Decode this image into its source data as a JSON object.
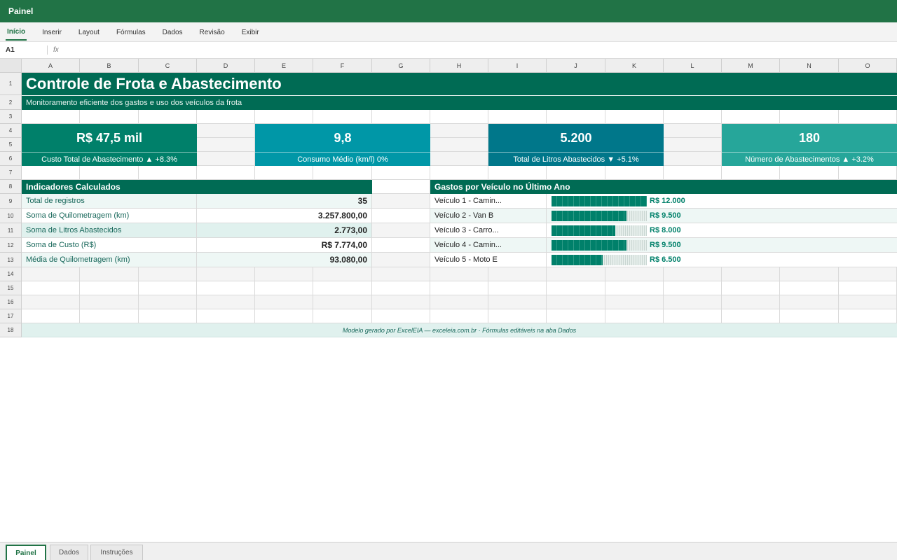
{
  "app": {
    "title": "Painel"
  },
  "ribbon": {
    "tabs": [
      "Início",
      "Inserir",
      "Layout",
      "Fórmulas",
      "Dados",
      "Revisão",
      "Exibir"
    ],
    "active_index": 0
  },
  "formula_bar": {
    "name_box": "A1",
    "fx": "fx",
    "value": ""
  },
  "columns": [
    "A",
    "B",
    "C",
    "D",
    "E",
    "F",
    "G",
    "H",
    "I",
    "J",
    "K",
    "L",
    "M",
    "N",
    "O"
  ],
  "rows": [
    "1",
    "2",
    "3",
    "4",
    "5",
    "6",
    "7",
    "8",
    "9",
    "10",
    "11",
    "12",
    "13",
    "14",
    "15",
    "16",
    "17",
    "18"
  ],
  "sheet": {
    "title": "Controle de Frota e Abastecimento",
    "subtitle": "Monitoramento eficiente dos gastos e uso dos veículos da frota",
    "kpis": [
      {
        "value": "R$ 47,5 mil",
        "label": "Custo Total de Abastecimento ▲ +8.3%",
        "color": "#00806a"
      },
      {
        "value": "9,8",
        "label": "Consumo Médio (km/l) 0%",
        "color": "#0097a7"
      },
      {
        "value": "5.200",
        "label": "Total de Litros Abastecidos ▼ +5.1%",
        "color": "#00778a"
      },
      {
        "value": "180",
        "label": "Número de Abastecimentos ▲ +3.2%",
        "color": "#26a69a"
      }
    ],
    "indicators": {
      "header": "Indicadores Calculados",
      "items": [
        {
          "label": "Total de registros",
          "value": "35"
        },
        {
          "label": "Soma de Quilometragem (km)",
          "value": "3.257.800,00"
        },
        {
          "label": "Soma de Litros Abastecidos",
          "value": "2.773,00"
        },
        {
          "label": "Soma de Custo (R$)",
          "value": "R$ 7.774,00"
        },
        {
          "label": "Média de Quilometragem (km)",
          "value": "93.080,00"
        }
      ]
    },
    "vehicles": {
      "header": "Gastos por Veículo no Último Ano",
      "items": [
        {
          "label": "Veículo 1 - Camin...",
          "value_text": "R$ 12.000",
          "fraction": 1.0
        },
        {
          "label": "Veículo 2 - Van B",
          "value_text": "R$ 9.500",
          "fraction": 0.79
        },
        {
          "label": "Veículo 3 - Carro...",
          "value_text": "R$ 8.000",
          "fraction": 0.67
        },
        {
          "label": "Veículo 4 - Camin...",
          "value_text": "R$ 9.500",
          "fraction": 0.79
        },
        {
          "label": "Veículo 5 - Moto E",
          "value_text": "R$ 6.500",
          "fraction": 0.54
        }
      ]
    },
    "footer": "Modelo gerado por ExcelEIA — exceleia.com.br · Fórmulas editáveis na aba Dados"
  },
  "sheet_tabs": {
    "tabs": [
      "Painel",
      "Dados",
      "Instruções"
    ],
    "active_index": 0
  },
  "colors": {
    "brand": "#217346",
    "header_dark": "#006b54",
    "band_light": "#e0f1ee",
    "bar": "#00806a"
  }
}
